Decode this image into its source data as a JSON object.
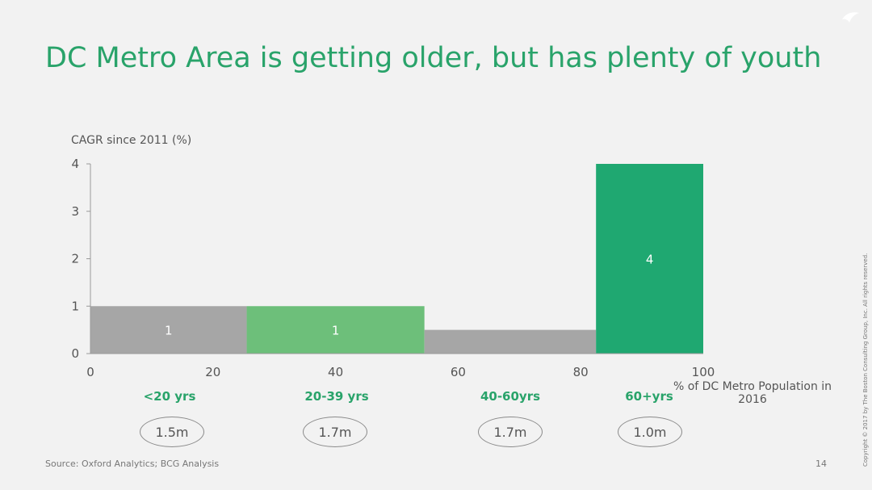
{
  "title": "DC Metro Area is getting older, but has plenty of youth",
  "ylabel": "CAGR since 2011 (%)",
  "xaxis_title": "% of DC Metro Population in 2016",
  "categories": [
    {
      "label": "<20 yrs",
      "population": "1.5m"
    },
    {
      "label": "20-39 yrs",
      "population": "1.7m"
    },
    {
      "label": "40-60yrs",
      "population": "1.7m"
    },
    {
      "label": "60+yrs",
      "population": "1.0m"
    }
  ],
  "source": "Source: Oxford Analytics; BCG Analysis",
  "page_number": "14",
  "copyright": "Copyright © 2017 by The Boston Consulting Group, Inc. All rights reserved.",
  "colors": {
    "title": "#29a36a",
    "gray_bar": "#a6a6a6",
    "light_green_bar": "#6dbf7a",
    "dark_green_bar": "#1fa871"
  },
  "chart_data": {
    "type": "bar",
    "subtype": "variable-width (marimekko)",
    "xlim": [
      0,
      100
    ],
    "ylim": [
      0,
      4
    ],
    "xticks": [
      0,
      20,
      40,
      60,
      80,
      100
    ],
    "yticks": [
      0,
      1,
      2,
      3,
      4
    ],
    "ylabel": "CAGR since 2011 (%)",
    "xlabel": "% of DC Metro Population in 2016",
    "bars": [
      {
        "category": "<20 yrs",
        "x_start": 0,
        "x_end": 25.5,
        "value": 1,
        "label": "1",
        "color": "#a6a6a6"
      },
      {
        "category": "20-39 yrs",
        "x_start": 25.5,
        "x_end": 54.5,
        "value": 1,
        "label": "1",
        "color": "#6dbf7a"
      },
      {
        "category": "40-60yrs",
        "x_start": 54.5,
        "x_end": 82.5,
        "value": 0.5,
        "label": "",
        "color": "#a6a6a6"
      },
      {
        "category": "60+yrs",
        "x_start": 82.5,
        "x_end": 100,
        "value": 4,
        "label": "4",
        "color": "#1fa871"
      }
    ],
    "grid": false,
    "legend": "none"
  }
}
